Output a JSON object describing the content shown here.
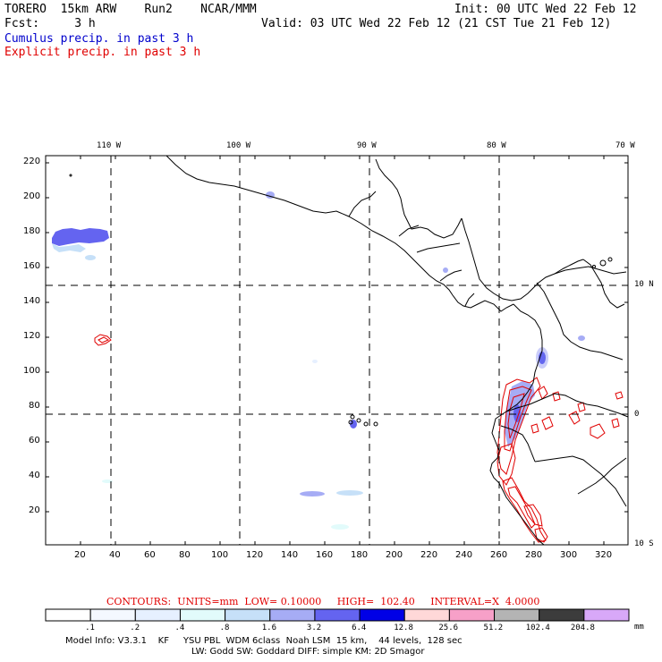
{
  "header": {
    "model_line": "TORERO  15km ARW    Run2    NCAR/MMM",
    "init_line": "Init: 00 UTC Wed 22 Feb 12",
    "fcst_line": "Fcst:     3 h",
    "valid_line": "Valid: 03 UTC Wed 22 Feb 12 (21 CST Tue 21 Feb 12)"
  },
  "legend_fields": {
    "cumulus": "Cumulus precip. in past 3 h",
    "explicit": "Explicit precip. in past 3 h"
  },
  "map": {
    "lon_labels": [
      "110 W",
      "100 W",
      "90 W",
      "80 W",
      "70 W"
    ],
    "lat_labels": [
      "10 N",
      "0",
      "10 S"
    ],
    "x_ticks": [
      "20",
      "40",
      "60",
      "80",
      "100",
      "120",
      "140",
      "160",
      "180",
      "200",
      "220",
      "240",
      "260",
      "280",
      "300",
      "320"
    ],
    "y_ticks": [
      "220",
      "200",
      "180",
      "160",
      "140",
      "120",
      "100",
      "80",
      "60",
      "40",
      "20"
    ]
  },
  "contours_line": "CONTOURS:  UNITS=mm  LOW= 0.10000     HIGH=  102.40     INTERVAL=X  4.0000",
  "colorbar": {
    "unit": "mm",
    "labels": [
      ".1",
      ".2",
      ".4",
      ".8",
      "1.6",
      "3.2",
      "6.4",
      "12.8",
      "25.6",
      "51.2",
      "102.4",
      "204.8"
    ],
    "colors": [
      "#ffffff",
      "#f4f8ff",
      "#e6f0ff",
      "#e2fbfb",
      "#c6e0f8",
      "#a6acf5",
      "#6464f0",
      "#0000e6",
      "#ffd8d8",
      "#f7a0c8",
      "#b4b4b4",
      "#3c3c3c",
      "#d8a8f8"
    ]
  },
  "model_info": {
    "line1": "Model Info: V3.3.1    KF     YSU PBL  WDM 6class  Noah LSM  15 km,    44 levels,  128 sec",
    "line2": "LW: Godd SW: Goddard DIFF: simple KM: 2D Smagor"
  }
}
